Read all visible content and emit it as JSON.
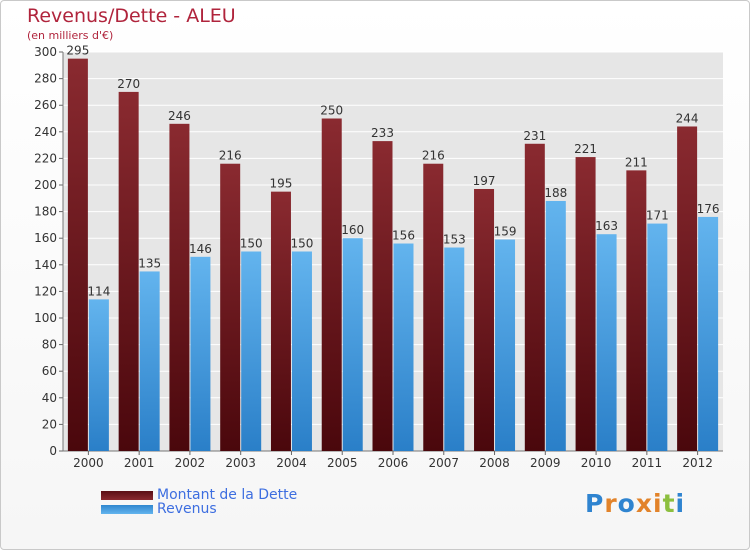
{
  "chart_data": {
    "type": "bar",
    "title": "Revenus/Dette - ALEU",
    "subtitle": "(en milliers d'€)",
    "categories": [
      "2000",
      "2001",
      "2002",
      "2003",
      "2004",
      "2005",
      "2006",
      "2007",
      "2008",
      "2009",
      "2010",
      "2011",
      "2012"
    ],
    "series": [
      {
        "name": "Montant de la Dette",
        "values": [
          295,
          270,
          246,
          216,
          195,
          250,
          233,
          216,
          197,
          231,
          221,
          211,
          244
        ],
        "color": "#7a1b22"
      },
      {
        "name": "Revenus",
        "values": [
          114,
          135,
          146,
          150,
          150,
          160,
          156,
          153,
          159,
          188,
          163,
          171,
          176
        ],
        "color": "#4aa3e6"
      }
    ],
    "ylim": [
      0,
      300
    ],
    "yticks": [
      0,
      20,
      40,
      60,
      80,
      100,
      120,
      140,
      160,
      180,
      200,
      220,
      240,
      260,
      280,
      300
    ],
    "grid": true,
    "legend": "bottom-left"
  },
  "logo": {
    "text": "Proxiti",
    "colors": [
      "#2f84d0",
      "#e2832a",
      "#2f84d0",
      "#e2832a",
      "#e2832a",
      "#8cbf3f",
      "#2f84d0"
    ]
  }
}
